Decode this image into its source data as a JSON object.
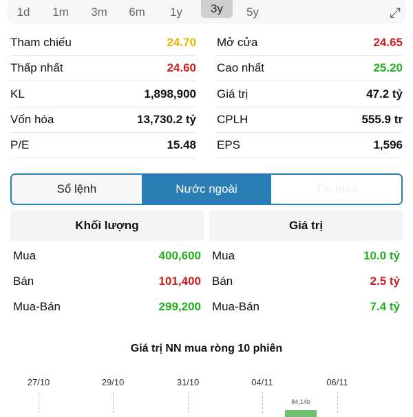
{
  "ranges": {
    "items": [
      "1d",
      "1m",
      "3m",
      "6m",
      "1y",
      "3y",
      "5y"
    ],
    "selected": "3y"
  },
  "stats": [
    {
      "label": "Tham chiếu",
      "value": "24.70",
      "color": "#e8b400"
    },
    {
      "label": "Mở cửa",
      "value": "24.65",
      "color": "#cc1f1f"
    },
    {
      "label": "Thấp nhất",
      "value": "24.60",
      "color": "#cc1f1f"
    },
    {
      "label": "Cao nhất",
      "value": "25.20",
      "color": "#22b022"
    },
    {
      "label": "KL",
      "value": "1,898,900",
      "color": "#111"
    },
    {
      "label": "Giá trị",
      "value": "47.2 tỷ",
      "color": "#111"
    },
    {
      "label": "Vốn hóa",
      "value": "13,730.2 tỷ",
      "color": "#111"
    },
    {
      "label": "CPLH",
      "value": "555.9 tr",
      "color": "#111"
    },
    {
      "label": "P/E",
      "value": "15.48",
      "color": "#111"
    },
    {
      "label": "EPS",
      "value": "1,596",
      "color": "#111"
    }
  ],
  "tabs": [
    "Sổ lệnh",
    "Nước ngoài",
    "Tín hiệu"
  ],
  "foreign": {
    "volume": {
      "header": "Khối lượng",
      "rows": [
        {
          "label": "Mua",
          "value": "400,600",
          "color": "#22b022"
        },
        {
          "label": "Bán",
          "value": "101,400",
          "color": "#cc1f1f"
        },
        {
          "label": "Mua-Bán",
          "value": "299,200",
          "color": "#22b022"
        }
      ]
    },
    "value": {
      "header": "Giá trị",
      "rows": [
        {
          "label": "Mua",
          "value": "10.0 tỷ",
          "color": "#22b022"
        },
        {
          "label": "Bán",
          "value": "2.5 tỷ",
          "color": "#cc1f1f"
        },
        {
          "label": "Mua-Bán",
          "value": "7.4 tỷ",
          "color": "#22b022"
        }
      ]
    }
  },
  "chart_data": {
    "type": "bar",
    "title": "Giá trị NN mua ròng 10 phiên",
    "tick_labels": [
      "27/10",
      "29/10",
      "31/10",
      "04/11",
      "06/11"
    ],
    "visible_bars": [
      {
        "category": "05/11",
        "label": "84,14b",
        "value": 84.14,
        "color": "#6cc06c"
      }
    ]
  }
}
